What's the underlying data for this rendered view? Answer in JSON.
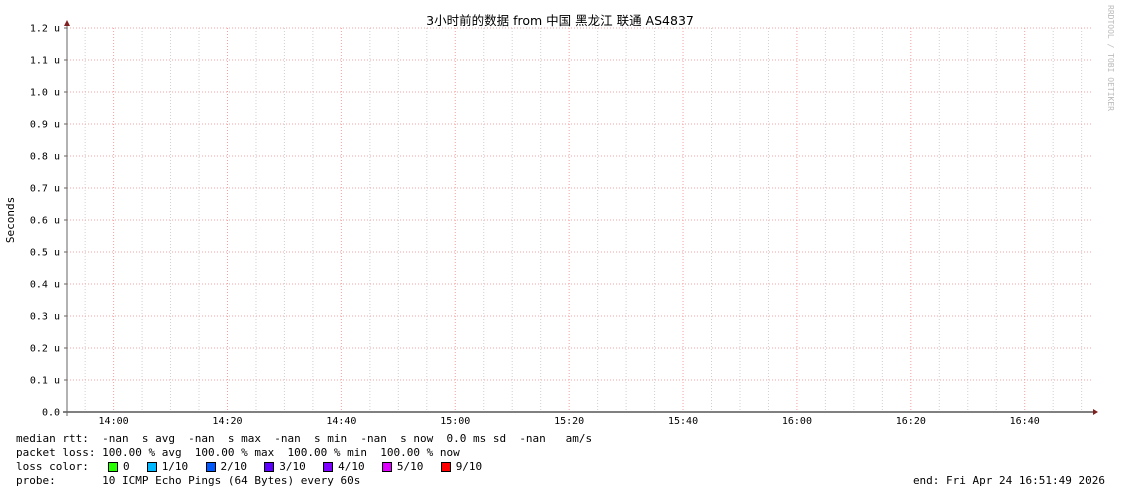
{
  "chart_data": {
    "type": "line",
    "title": "3小时前的数据 from 中国 黑龙江 联通 AS4837",
    "ylabel": "Seconds",
    "xlabel": "",
    "xlim": [
      "13:51:49",
      "16:51:49"
    ],
    "ylim": [
      0,
      1.2
    ],
    "y_ticks": [
      "0.0",
      "0.1 u",
      "0.2 u",
      "0.3 u",
      "0.4 u",
      "0.5 u",
      "0.6 u",
      "0.7 u",
      "0.8 u",
      "0.9 u",
      "1.0 u",
      "1.1 u",
      "1.2 u"
    ],
    "x_ticks": [
      "14:00",
      "14:20",
      "14:40",
      "15:00",
      "15:20",
      "15:40",
      "16:00",
      "16:20",
      "16:40"
    ],
    "grid": true,
    "series": [],
    "watermark": "RRDTOOL / TOBI OETIKER"
  },
  "legend": {
    "median_rtt": "median rtt:  -nan  s avg  -nan  s max  -nan  s min  -nan  s now  0.0 ms sd  -nan   am/s",
    "packet_loss": "packet loss: 100.00 % avg  100.00 % max  100.00 % min  100.00 % now",
    "loss_color_label": "loss color:  ",
    "loss_colors": [
      {
        "label": "0",
        "color": "#26ff00"
      },
      {
        "label": "1/10",
        "color": "#00b8ff"
      },
      {
        "label": "2/10",
        "color": "#0059ff"
      },
      {
        "label": "3/10",
        "color": "#5e00ff"
      },
      {
        "label": "4/10",
        "color": "#7e00ff"
      },
      {
        "label": "5/10",
        "color": "#dd00ff"
      },
      {
        "label": "9/10",
        "color": "#ff0000"
      }
    ],
    "probe": "probe:       10 ICMP Echo Pings (64 Bytes) every 60s",
    "end": "end: Fri Apr 24 16:51:49 2026"
  }
}
